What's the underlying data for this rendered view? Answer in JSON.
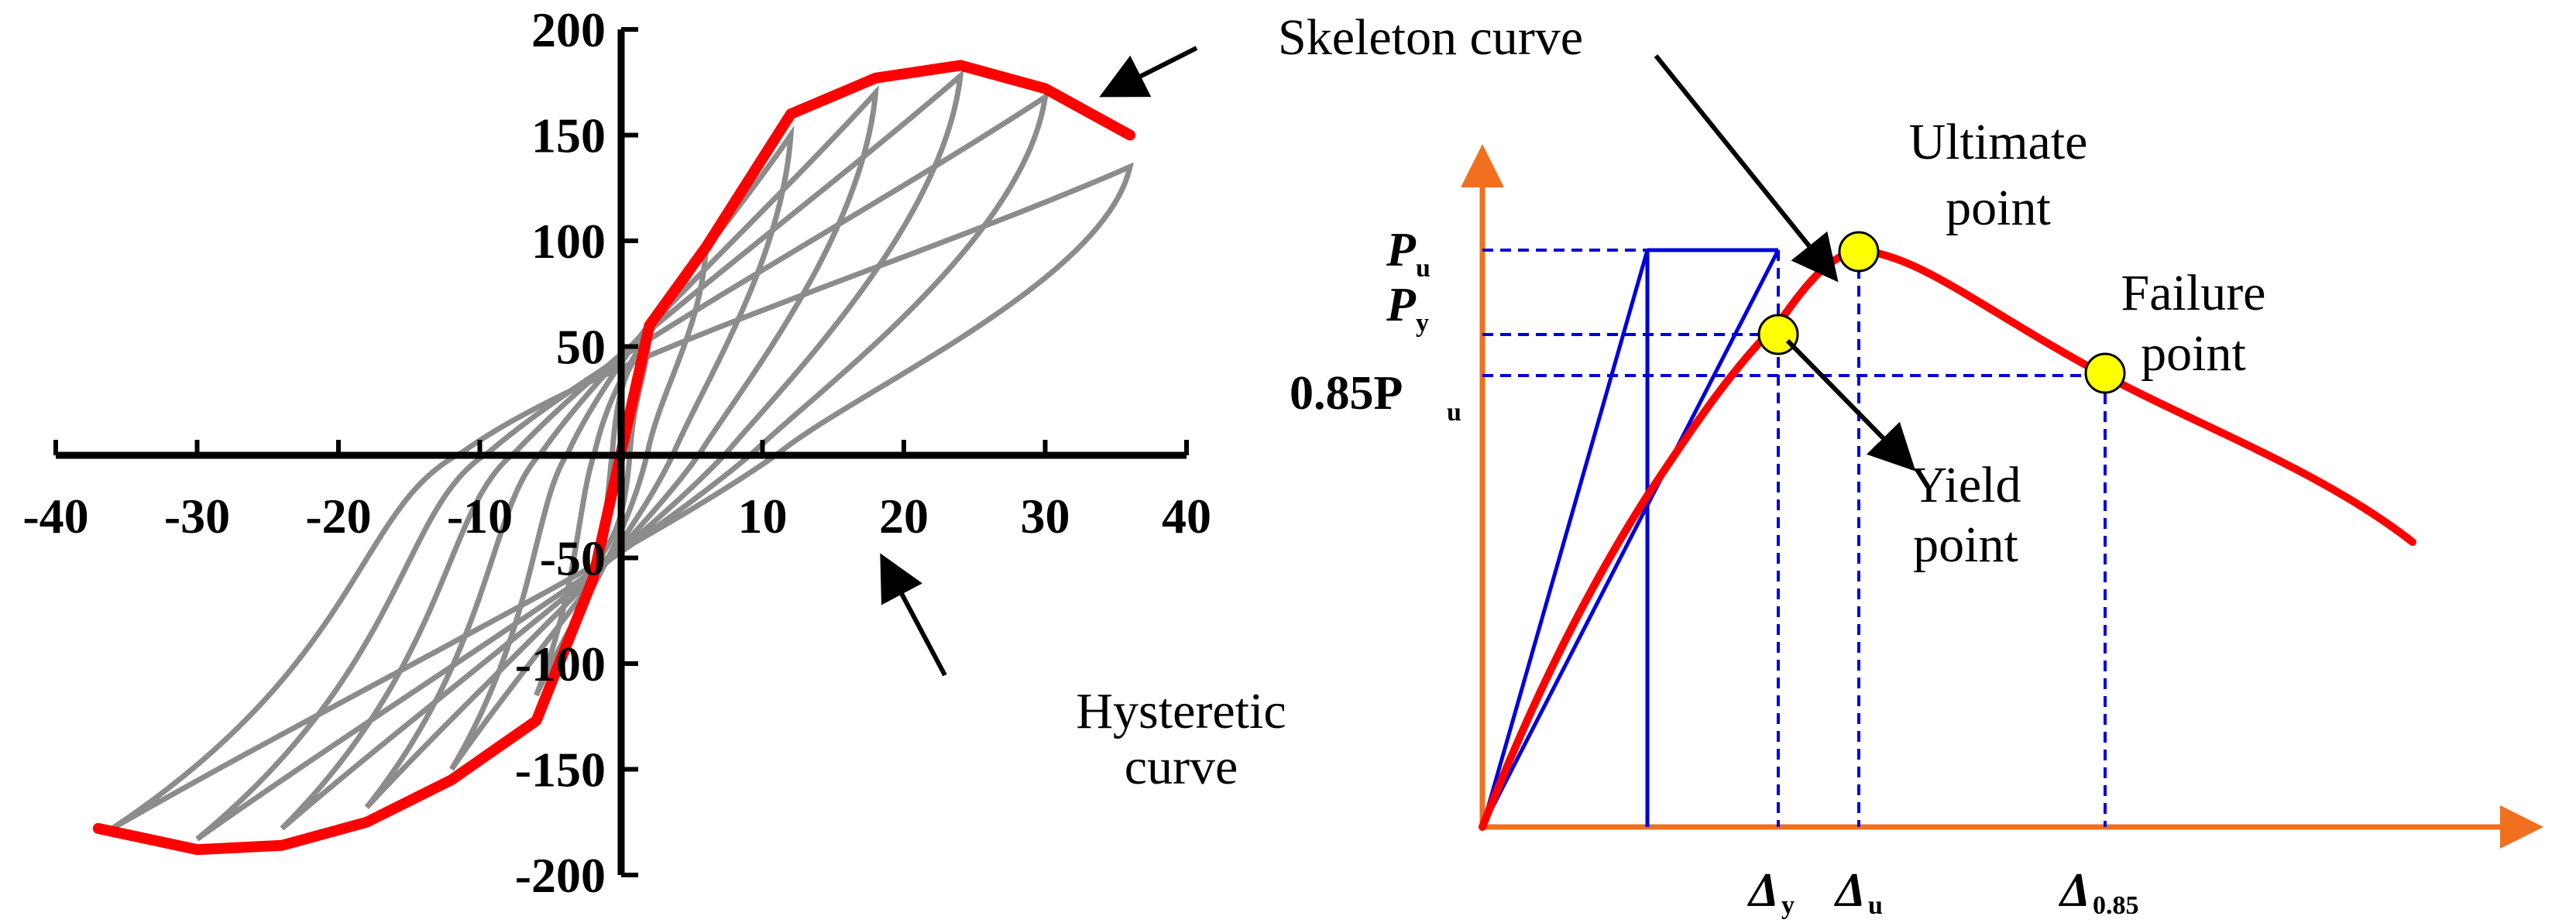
{
  "chart_data": [
    {
      "type": "line",
      "xlim": [
        -40,
        40
      ],
      "ylim": [
        -200,
        200
      ],
      "x_ticks": [
        "-40",
        "-30",
        "-20",
        "-10",
        "10",
        "20",
        "30",
        "40"
      ],
      "y_ticks": [
        "200",
        "150",
        "100",
        "50",
        "-50",
        "-100",
        "-150",
        "-200"
      ],
      "grid": false,
      "colors": {
        "hysteretic": "#8c8c8c",
        "skeleton": "#ff0000"
      },
      "series": [
        {
          "name": "Skeleton curve",
          "x": [
            -37,
            -30,
            -24,
            -18,
            -12,
            -6,
            -2,
            0,
            2,
            6,
            12,
            18,
            24,
            30,
            36
          ],
          "y": [
            -178,
            -188,
            -186,
            -175,
            -155,
            -127,
            -60,
            0,
            60,
            97,
            160,
            177,
            183,
            172,
            150
          ]
        }
      ],
      "annotations": {
        "skeleton": "Skeleton curve",
        "hysteretic_line1": "Hysteretic",
        "hysteretic_line2": "curve"
      }
    },
    {
      "type": "line",
      "grid": false,
      "colors": {
        "axes": "#f07020",
        "curve": "#ff0000",
        "guides": "#0000dd",
        "points": "#ffff00"
      },
      "labels": {
        "pu": "P",
        "pu_sub": "u",
        "py": "P",
        "py_sub": "y",
        "p085": "0.85P",
        "p085_sub": "u",
        "dy": "Δ",
        "dy_sub": "y",
        "du": "Δ",
        "du_sub": "u",
        "d085": "Δ",
        "d085_sub": "0.85"
      },
      "annotations": {
        "ultimate_line1": "Ultimate",
        "ultimate_line2": "point",
        "failure_line1": "Failure",
        "failure_line2": "point",
        "yield_line1": "Yield",
        "yield_line2": "point"
      }
    }
  ]
}
